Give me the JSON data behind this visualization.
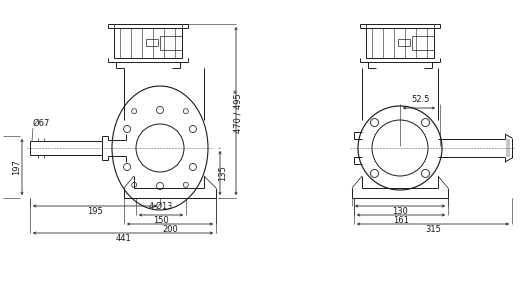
{
  "bg_color": "#ffffff",
  "line_color": "#1a1a1a",
  "dim_color": "#1a1a1a",
  "font_size": 6.0,
  "dims_left": {
    "height_197": "197",
    "dia_67": "Ø67",
    "height_470": "470 / 495*",
    "height_135": "135",
    "width_195": "195",
    "width_150": "150",
    "width_200": "200",
    "width_441": "441",
    "holes": "4-Ø13"
  },
  "dims_right": {
    "width_52_5": "52.5",
    "width_130": "130",
    "width_161": "161",
    "width_315": "315"
  }
}
